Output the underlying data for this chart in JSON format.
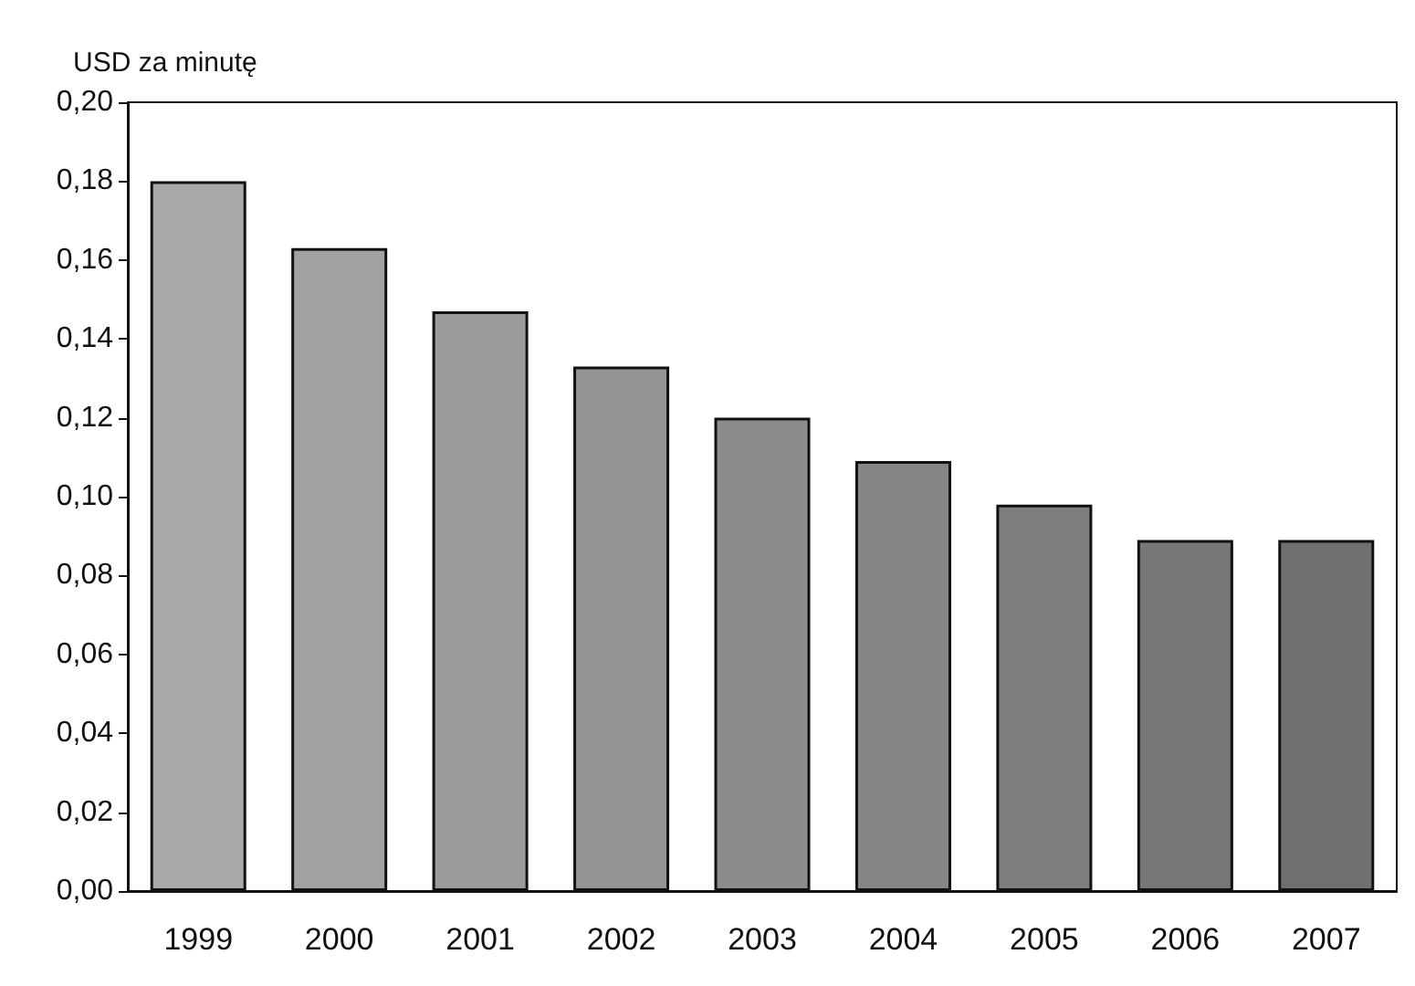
{
  "chart_data": {
    "type": "bar",
    "ylabel": "USD za minutę",
    "categories": [
      "1999",
      "2000",
      "2001",
      "2002",
      "2003",
      "2004",
      "2005",
      "2006",
      "2007"
    ],
    "values": [
      0.18,
      0.163,
      0.147,
      0.133,
      0.12,
      0.109,
      0.098,
      0.089,
      0.089
    ],
    "colors": [
      "#a9a9a9",
      "#a2a2a2",
      "#9b9b9b",
      "#949494",
      "#8c8c8c",
      "#858585",
      "#7e7e7e",
      "#777777",
      "#707070"
    ],
    "ylim": [
      0,
      0.2
    ],
    "yticks": [
      {
        "value": 0,
        "label": "0,00"
      },
      {
        "value": 0.02,
        "label": "0,02"
      },
      {
        "value": 0.04,
        "label": "0,04"
      },
      {
        "value": 0.06,
        "label": "0,06"
      },
      {
        "value": 0.08,
        "label": "0,08"
      },
      {
        "value": 0.1,
        "label": "0,10"
      },
      {
        "value": 0.12,
        "label": "0,12"
      },
      {
        "value": 0.14,
        "label": "0,14"
      },
      {
        "value": 0.16,
        "label": "0,16"
      },
      {
        "value": 0.18,
        "label": "0,18"
      },
      {
        "value": 0.2,
        "label": "0,20"
      }
    ],
    "grid": false
  }
}
